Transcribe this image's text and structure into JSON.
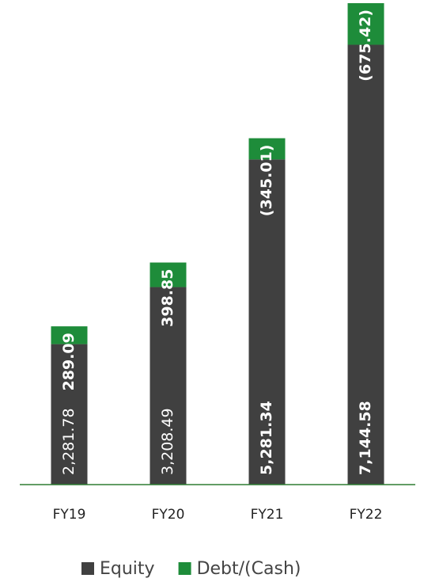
{
  "chart_data": {
    "type": "stacked_bar",
    "categories": [
      "FY19",
      "FY20",
      "FY21",
      "FY22"
    ],
    "series": [
      {
        "name": "Equity",
        "color": "#404040",
        "values": [
          2281.78,
          3208.49,
          5281.34,
          7144.58
        ],
        "value_labels": [
          "2,281.78",
          "3,208.49",
          "5,281.34",
          "7,144.58"
        ]
      },
      {
        "name": "Debt/(Cash)",
        "color": "#1e8c3a",
        "values": [
          289.09,
          398.85,
          345.01,
          675.42
        ],
        "value_labels": [
          "289.09",
          "398.85",
          "(345.01)",
          "(675.42)"
        ]
      }
    ],
    "legend": "bottom"
  }
}
